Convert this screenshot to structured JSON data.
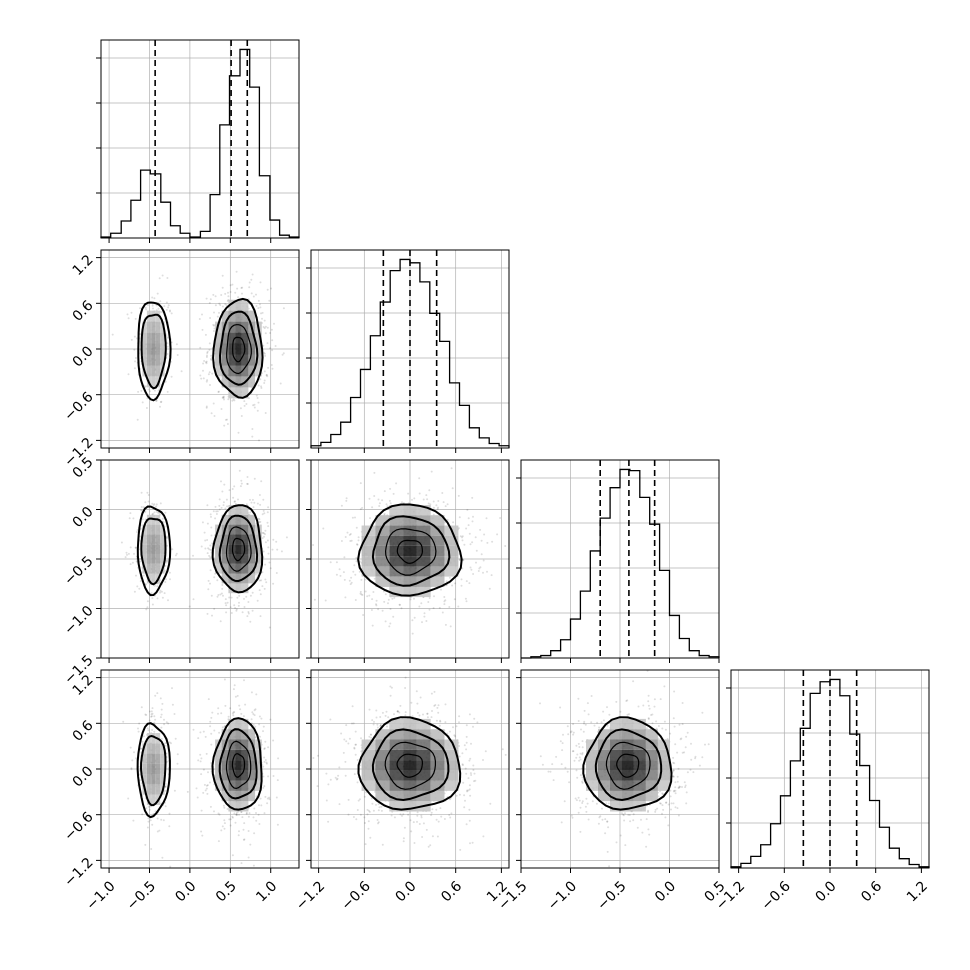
{
  "chart_data": {
    "type": "corner",
    "n_params": 4,
    "params": [
      {
        "range": [
          -1.1,
          1.35
        ],
        "ticks": [
          -1.0,
          -0.5,
          0.0,
          0.5,
          1.0
        ],
        "tick_labels": [
          "−1.0",
          "−0.5",
          "0.0",
          "0.5",
          "1.0"
        ]
      },
      {
        "range": [
          -1.3,
          1.3
        ],
        "ticks": [
          -1.2,
          -0.6,
          0.0,
          0.6,
          1.2
        ],
        "tick_labels": [
          "−1.2",
          "−0.6",
          "0.0",
          "0.6",
          "1.2"
        ]
      },
      {
        "range": [
          -1.5,
          0.5
        ],
        "ticks": [
          -1.5,
          -1.0,
          -0.5,
          0.0,
          0.5
        ],
        "tick_labels": [
          "−1.5",
          "−1.0",
          "−0.5",
          "0.0",
          "0.5"
        ]
      },
      {
        "range": [
          -1.3,
          1.3
        ],
        "ticks": [
          -1.2,
          -0.6,
          0.0,
          0.6,
          1.2
        ],
        "tick_labels": [
          "−1.2",
          "−0.6",
          "0.0",
          "0.6",
          "1.2"
        ]
      }
    ],
    "histograms": [
      {
        "bin_edges": [
          -1.1,
          -0.98,
          -0.85,
          -0.73,
          -0.61,
          -0.49,
          -0.36,
          -0.24,
          -0.12,
          0.0,
          0.13,
          0.25,
          0.37,
          0.49,
          0.62,
          0.74,
          0.86,
          0.99,
          1.11,
          1.23,
          1.35
        ],
        "counts": [
          1,
          5,
          18,
          40,
          72,
          68,
          38,
          13,
          5,
          1,
          7,
          46,
          120,
          172,
          200,
          160,
          66,
          19,
          3,
          1
        ],
        "quantiles": [
          -0.43,
          0.51,
          0.71
        ]
      },
      {
        "bin_edges": [
          -1.3,
          -1.17,
          -1.04,
          -0.91,
          -0.78,
          -0.65,
          -0.52,
          -0.39,
          -0.26,
          -0.13,
          0.0,
          0.13,
          0.26,
          0.39,
          0.52,
          0.65,
          0.78,
          0.91,
          1.04,
          1.17,
          1.3
        ],
        "counts": [
          2,
          5,
          12,
          23,
          45,
          70,
          100,
          130,
          158,
          168,
          165,
          148,
          120,
          95,
          58,
          38,
          18,
          9,
          4,
          2
        ],
        "quantiles": [
          -0.35,
          0.0,
          0.35
        ]
      },
      {
        "bin_edges": [
          -1.5,
          -1.4,
          -1.3,
          -1.2,
          -1.1,
          -1.0,
          -0.9,
          -0.8,
          -0.7,
          -0.6,
          -0.5,
          -0.4,
          -0.3,
          -0.2,
          -0.1,
          0.0,
          0.1,
          0.2,
          0.3,
          0.4,
          0.5
        ],
        "counts": [
          0,
          1,
          2,
          6,
          15,
          32,
          55,
          88,
          115,
          140,
          155,
          154,
          132,
          110,
          72,
          35,
          16,
          6,
          2,
          1
        ],
        "quantiles": [
          -0.7,
          -0.41,
          -0.15
        ]
      },
      {
        "bin_edges": [
          -1.3,
          -1.17,
          -1.04,
          -0.91,
          -0.78,
          -0.65,
          -0.52,
          -0.39,
          -0.26,
          -0.13,
          0.0,
          0.13,
          0.26,
          0.39,
          0.52,
          0.65,
          0.78,
          0.91,
          1.04,
          1.17,
          1.3
        ],
        "counts": [
          1,
          4,
          10,
          20,
          38,
          62,
          92,
          120,
          150,
          160,
          162,
          148,
          115,
          88,
          58,
          35,
          17,
          8,
          3,
          1
        ],
        "quantiles": [
          -0.35,
          0.0,
          0.35
        ]
      }
    ],
    "pairs": [
      {
        "row": 1,
        "col": 0,
        "clusters": [
          {
            "cx": -0.45,
            "cy": 0.0,
            "sx": 0.1,
            "sy": 0.32,
            "weight": 0.3
          },
          {
            "cx": 0.6,
            "cy": 0.0,
            "sx": 0.15,
            "sy": 0.32,
            "weight": 0.7
          }
        ]
      },
      {
        "row": 2,
        "col": 0,
        "clusters": [
          {
            "cx": -0.45,
            "cy": -0.4,
            "sx": 0.1,
            "sy": 0.22,
            "weight": 0.3
          },
          {
            "cx": 0.6,
            "cy": -0.4,
            "sx": 0.15,
            "sy": 0.22,
            "weight": 0.7
          }
        ]
      },
      {
        "row": 2,
        "col": 1,
        "clusters": [
          {
            "cx": 0.0,
            "cy": -0.42,
            "sx": 0.33,
            "sy": 0.23,
            "weight": 1.0
          }
        ]
      },
      {
        "row": 3,
        "col": 0,
        "clusters": [
          {
            "cx": -0.45,
            "cy": 0.0,
            "sx": 0.1,
            "sy": 0.3,
            "weight": 0.3
          },
          {
            "cx": 0.6,
            "cy": 0.05,
            "sx": 0.15,
            "sy": 0.3,
            "weight": 0.7
          }
        ]
      },
      {
        "row": 3,
        "col": 1,
        "clusters": [
          {
            "cx": 0.0,
            "cy": 0.05,
            "sx": 0.33,
            "sy": 0.3,
            "weight": 1.0
          }
        ]
      },
      {
        "row": 3,
        "col": 2,
        "clusters": [
          {
            "cx": -0.42,
            "cy": 0.05,
            "sx": 0.22,
            "sy": 0.3,
            "weight": 1.0
          }
        ]
      }
    ],
    "contour_levels_sigma": [
      0.5,
      1.0,
      1.5,
      2.0
    ],
    "grid": true,
    "title": "",
    "xlabel": "",
    "ylabel": ""
  }
}
